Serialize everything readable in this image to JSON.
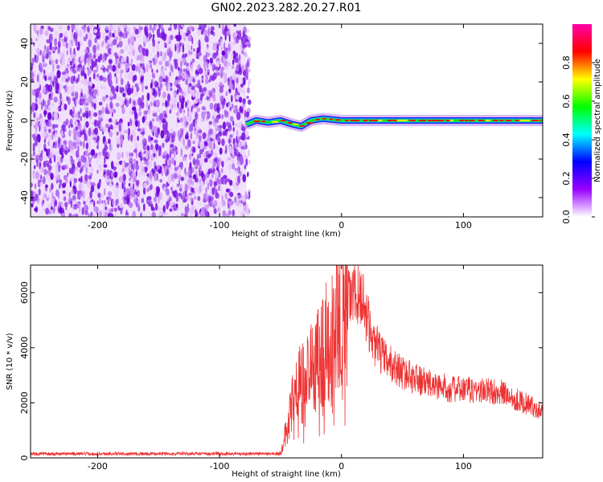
{
  "title": "GN02.2023.282.20.27.R01",
  "chart_data": [
    {
      "type": "heatmap",
      "xlabel": "Height of straight line (km)",
      "ylabel": "Frequency (Hz)",
      "xlim": [
        -255,
        165
      ],
      "ylim": [
        -50,
        50
      ],
      "xticks": [
        -200,
        -100,
        0,
        100
      ],
      "yticks": [
        -40,
        -20,
        0,
        20,
        40
      ],
      "noise_region_x": [
        -255,
        -78
      ],
      "carrier_frequency_hz": 0,
      "carrier_track": [
        {
          "x": -78,
          "y": -2
        },
        {
          "x": -70,
          "y": 0
        },
        {
          "x": -60,
          "y": -1
        },
        {
          "x": -50,
          "y": 0
        },
        {
          "x": -40,
          "y": -2
        },
        {
          "x": -33,
          "y": -3
        },
        {
          "x": -25,
          "y": 0
        },
        {
          "x": -15,
          "y": 1
        },
        {
          "x": 0,
          "y": 0
        },
        {
          "x": 165,
          "y": 0
        }
      ],
      "grid": false,
      "colorbar": {
        "label": "Normalized spectral amplitude",
        "ticks": [
          "0.0",
          "0.2",
          "0.4",
          "0.6",
          "0.8"
        ],
        "range": [
          0,
          1
        ],
        "colors": [
          "#ffffff",
          "#9900ff",
          "#0000ff",
          "#00ffff",
          "#00ff00",
          "#ffff00",
          "#ff0000",
          "#ff00aa"
        ]
      }
    },
    {
      "type": "line",
      "xlabel": "Height of straight line (km)",
      "ylabel": "SNR (10 * v/v)",
      "xlim": [
        -255,
        165
      ],
      "ylim": [
        0,
        7000
      ],
      "xticks": [
        -200,
        -100,
        0,
        100
      ],
      "yticks": [
        0,
        2000,
        4000,
        6000
      ],
      "grid": false,
      "series_color": "#ee3333",
      "envelope": [
        {
          "x": -255,
          "y": 150
        },
        {
          "x": -50,
          "y": 150
        },
        {
          "x": -48,
          "y": 500
        },
        {
          "x": -44,
          "y": 1200
        },
        {
          "x": -40,
          "y": 2000
        },
        {
          "x": -35,
          "y": 2600
        },
        {
          "x": -25,
          "y": 3300
        },
        {
          "x": -15,
          "y": 4000
        },
        {
          "x": -5,
          "y": 4900
        },
        {
          "x": 0,
          "y": 5400
        },
        {
          "x": 7,
          "y": 5800
        },
        {
          "x": 13,
          "y": 6000
        },
        {
          "x": 18,
          "y": 5700
        },
        {
          "x": 25,
          "y": 4300
        },
        {
          "x": 35,
          "y": 3600
        },
        {
          "x": 50,
          "y": 3100
        },
        {
          "x": 70,
          "y": 2700
        },
        {
          "x": 90,
          "y": 2500
        },
        {
          "x": 110,
          "y": 2450
        },
        {
          "x": 130,
          "y": 2400
        },
        {
          "x": 150,
          "y": 2000
        },
        {
          "x": 165,
          "y": 1700
        }
      ]
    }
  ]
}
